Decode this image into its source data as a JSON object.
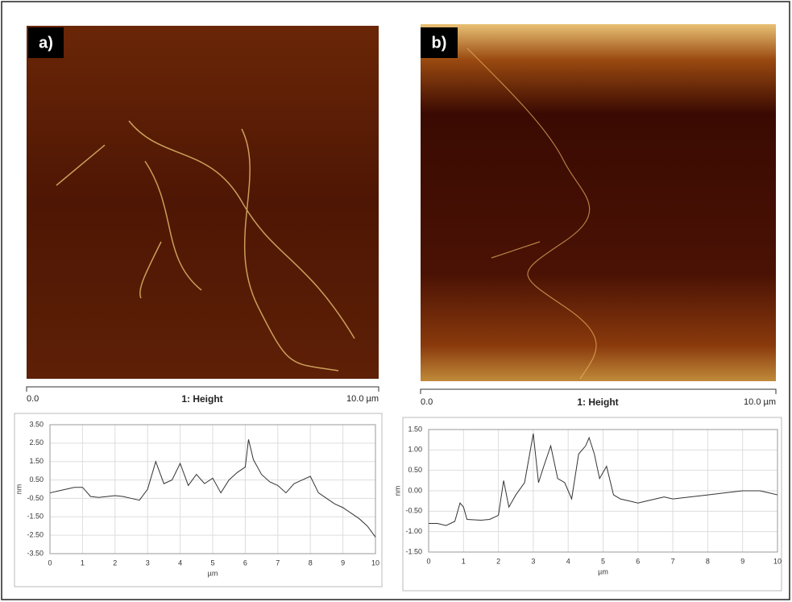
{
  "panels": [
    {
      "label": "a)",
      "scale": {
        "start": "0.0",
        "title": "1: Height",
        "end": "10.0 µm"
      }
    },
    {
      "label": "b)",
      "scale": {
        "start": "0.0",
        "title": "1: Height",
        "end": "10.0 µm"
      }
    }
  ],
  "chart_data": [
    {
      "type": "line",
      "x_label": "µm",
      "y_label": "nm",
      "x": [
        0,
        0.25,
        0.5,
        0.75,
        1,
        1.25,
        1.5,
        1.75,
        2,
        2.25,
        2.5,
        2.75,
        3,
        3.25,
        3.5,
        3.75,
        4,
        4.25,
        4.5,
        4.75,
        5,
        5.25,
        5.5,
        5.75,
        6,
        6.1,
        6.25,
        6.5,
        6.75,
        7,
        7.25,
        7.5,
        7.75,
        8,
        8.25,
        8.5,
        8.75,
        9,
        9.25,
        9.5,
        9.75,
        10
      ],
      "series": [
        {
          "color": "#333333",
          "values": [
            -0.2,
            -0.1,
            0,
            0.1,
            0.1,
            -0.4,
            -0.45,
            -0.4,
            -0.35,
            -0.4,
            -0.5,
            -0.6,
            0,
            1.5,
            0.3,
            0.5,
            1.4,
            0.2,
            0.8,
            0.3,
            0.6,
            -0.2,
            0.5,
            0.9,
            1.2,
            2.7,
            1.6,
            0.8,
            0.4,
            0.2,
            -0.2,
            0.3,
            0.5,
            0.7,
            -0.2,
            -0.5,
            -0.8,
            -1,
            -1.3,
            -1.6,
            -2,
            -2.6
          ]
        }
      ],
      "xlim": [
        0,
        10
      ],
      "xticks": [
        0,
        1,
        2,
        3,
        4,
        5,
        6,
        7,
        8,
        9,
        10
      ],
      "ylim": [
        -3.5,
        3.5
      ],
      "yticks": [
        {
          "value": -3.5,
          "label": "-3.50"
        },
        {
          "value": -2.5,
          "label": "-2.50"
        },
        {
          "value": -1.5,
          "label": "-1.50"
        },
        {
          "value": -0.5,
          "label": "-0.50"
        },
        {
          "value": 0.5,
          "label": "0.50"
        },
        {
          "value": 1.5,
          "label": "1.50"
        },
        {
          "value": 2.5,
          "label": "2.50"
        },
        {
          "value": 3.5,
          "label": "3.50"
        }
      ],
      "grid": true
    },
    {
      "type": "line",
      "x_label": "µm",
      "y_label": "nm",
      "x": [
        0,
        0.25,
        0.5,
        0.75,
        0.9,
        1,
        1.1,
        1.5,
        1.75,
        2,
        2.15,
        2.3,
        2.5,
        2.75,
        3,
        3.15,
        3.3,
        3.5,
        3.7,
        3.9,
        4.1,
        4.3,
        4.5,
        4.6,
        4.75,
        4.9,
        5.1,
        5.3,
        5.5,
        5.75,
        6,
        6.25,
        6.5,
        6.75,
        7,
        7.5,
        8,
        8.5,
        9,
        9.5,
        9.75,
        10
      ],
      "series": [
        {
          "color": "#333333",
          "values": [
            -0.8,
            -0.8,
            -0.85,
            -0.75,
            -0.3,
            -0.4,
            -0.7,
            -0.72,
            -0.7,
            -0.6,
            0.25,
            -0.4,
            -0.1,
            0.2,
            1.4,
            0.2,
            0.6,
            1.1,
            0.3,
            0.2,
            -0.2,
            0.9,
            1.1,
            1.3,
            0.9,
            0.3,
            0.6,
            -0.1,
            -0.2,
            -0.25,
            -0.3,
            -0.25,
            -0.2,
            -0.15,
            -0.2,
            -0.15,
            -0.1,
            -0.05,
            0,
            0,
            -0.05,
            -0.1
          ]
        }
      ],
      "xlim": [
        0,
        10
      ],
      "xticks": [
        0,
        1,
        2,
        3,
        4,
        5,
        6,
        7,
        8,
        9,
        10
      ],
      "ylim": [
        -1.5,
        1.5
      ],
      "yticks": [
        {
          "value": -1.5,
          "label": "-1.50"
        },
        {
          "value": -1,
          "label": "-1.00"
        },
        {
          "value": -0.5,
          "label": "-0.50"
        },
        {
          "value": 0,
          "label": "0.00"
        },
        {
          "value": 0.5,
          "label": "0.50"
        },
        {
          "value": 1,
          "label": "1.00"
        },
        {
          "value": 1.5,
          "label": "1.50"
        }
      ],
      "grid": true
    }
  ]
}
